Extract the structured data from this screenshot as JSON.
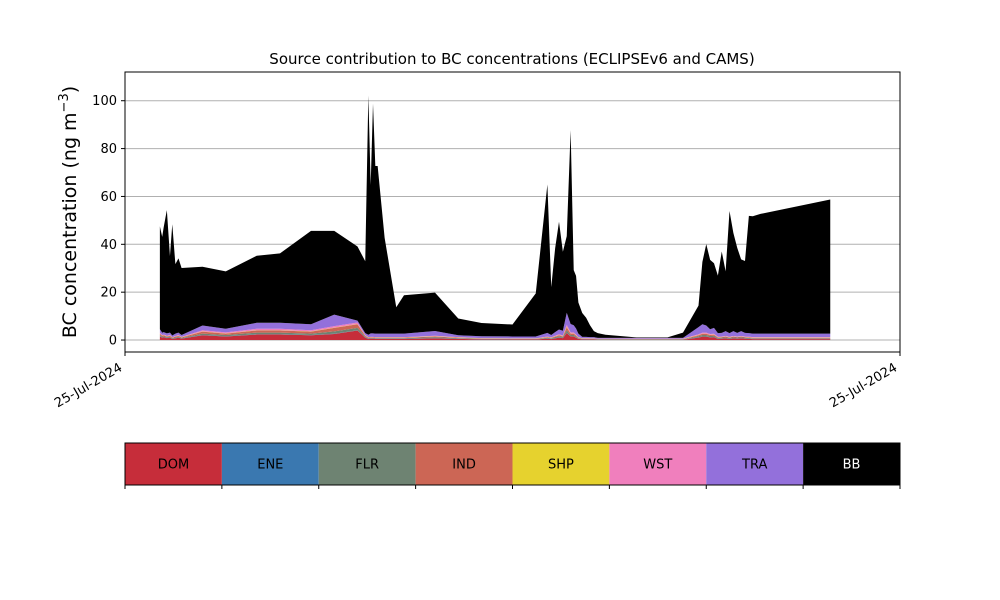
{
  "chart_data": {
    "type": "area",
    "title": "Source contribution to BC concentrations (ECLIPSEv6 and CAMS)",
    "ylabel": "BC concentration (ng m⁻³)",
    "ylabel_main": "BC concentration (ng m",
    "ylabel_sup": "−3",
    "ylabel_close": ")",
    "ylim": [
      -5,
      112
    ],
    "y_ticks": [
      0,
      20,
      40,
      60,
      80,
      100
    ],
    "x_ticks": [
      "25-Jul-2024",
      "25-Jul-2024"
    ],
    "xlim": [
      0,
      100
    ],
    "grid": "horizontal",
    "x": [
      4.5,
      4.8,
      5.0,
      5.4,
      5.8,
      6.1,
      6.5,
      6.9,
      7.3,
      10.0,
      13.0,
      17.0,
      20.0,
      24.0,
      27.0,
      30.0,
      31.0,
      31.4,
      31.7,
      32.0,
      32.3,
      32.6,
      32.9,
      33.2,
      33.5,
      35.0,
      36.0,
      40.0,
      43.0,
      46.0,
      50.0,
      53.0,
      54.5,
      55.0,
      55.5,
      56.0,
      56.5,
      57.0,
      57.5,
      57.9,
      58.2,
      58.5,
      59.0,
      59.5,
      60.0,
      60.5,
      61.0,
      62.0,
      66.0,
      70.0,
      72.0,
      74.0,
      74.5,
      75.0,
      75.5,
      76.0,
      76.5,
      77.0,
      77.5,
      78.0,
      78.5,
      79.0,
      79.5,
      80.0,
      80.5,
      81.0,
      82.0,
      91.0
    ],
    "series": [
      {
        "name": "DOM",
        "color": "#c62d3a",
        "values": [
          1.5,
          1.0,
          1.2,
          0.8,
          1.0,
          0.5,
          0.7,
          1.0,
          0.6,
          2.0,
          1.5,
          2.3,
          2.3,
          2.0,
          2.5,
          4.0,
          1.0,
          0.5,
          0.6,
          0.6,
          0.5,
          0.5,
          0.5,
          0.5,
          0.5,
          0.5,
          0.5,
          0.7,
          0.5,
          0.3,
          0.2,
          0.2,
          0.6,
          0.4,
          0.7,
          1.0,
          0.8,
          3.0,
          1.5,
          1.5,
          1.0,
          0.5,
          0.3,
          0.3,
          0.2,
          0.2,
          0.1,
          0.1,
          0.1,
          0.1,
          0.1,
          1.0,
          1.4,
          1.4,
          1.1,
          1.2,
          0.5,
          0.6,
          0.7,
          0.5,
          0.7,
          0.6,
          0.7,
          0.6,
          0.5,
          0.4,
          0.4,
          0.4
        ]
      },
      {
        "name": "ENE",
        "color": "#3a78b0",
        "values": [
          0.1,
          0.1,
          0.1,
          0.1,
          0.1,
          0.1,
          0.1,
          0.1,
          0.1,
          0.1,
          0.1,
          0.1,
          0.1,
          0.1,
          0.1,
          0.1,
          0.1,
          0.1,
          0.1,
          0.1,
          0.1,
          0.1,
          0.1,
          0.1,
          0.1,
          0.1,
          0.1,
          0.1,
          0.1,
          0.1,
          0.1,
          0.1,
          0.1,
          0.1,
          0.1,
          0.1,
          0.1,
          0.1,
          0.1,
          0.1,
          0.1,
          0.1,
          0.1,
          0.1,
          0.1,
          0.1,
          0.1,
          0.1,
          0.1,
          0.1,
          0.1,
          0.1,
          0.1,
          0.1,
          0.1,
          0.1,
          0.1,
          0.1,
          0.1,
          0.1,
          0.1,
          0.1,
          0.1,
          0.1,
          0.1,
          0.1,
          0.1,
          0.1
        ]
      },
      {
        "name": "FLR",
        "color": "#6e8372",
        "values": [
          0.5,
          0.3,
          0.3,
          0.3,
          0.3,
          0.2,
          0.3,
          0.3,
          0.2,
          0.6,
          0.5,
          0.7,
          0.7,
          0.6,
          1.0,
          1.0,
          0.3,
          0.2,
          0.2,
          0.2,
          0.2,
          0.2,
          0.2,
          0.2,
          0.2,
          0.2,
          0.2,
          0.4,
          0.2,
          0.1,
          0.1,
          0.1,
          0.3,
          0.2,
          0.4,
          0.5,
          0.4,
          1.0,
          0.5,
          0.5,
          0.4,
          0.2,
          0.1,
          0.1,
          0.1,
          0.1,
          0.1,
          0.1,
          0.1,
          0.1,
          0.1,
          0.5,
          0.6,
          0.6,
          0.5,
          0.5,
          0.3,
          0.3,
          0.3,
          0.3,
          0.3,
          0.3,
          0.3,
          0.3,
          0.3,
          0.2,
          0.2,
          0.2
        ]
      },
      {
        "name": "IND",
        "color": "#cc6655",
        "values": [
          0.5,
          0.4,
          0.4,
          0.3,
          0.4,
          0.2,
          0.3,
          0.4,
          0.2,
          0.8,
          0.6,
          0.9,
          0.9,
          0.8,
          1.5,
          1.5,
          0.4,
          0.2,
          0.2,
          0.2,
          0.2,
          0.2,
          0.2,
          0.2,
          0.2,
          0.2,
          0.2,
          0.3,
          0.2,
          0.1,
          0.1,
          0.1,
          0.2,
          0.2,
          0.3,
          0.4,
          0.3,
          1.2,
          0.6,
          0.6,
          0.4,
          0.2,
          0.1,
          0.1,
          0.1,
          0.1,
          0.1,
          0.1,
          0.1,
          0.1,
          0.1,
          0.4,
          0.5,
          0.5,
          0.4,
          0.4,
          0.2,
          0.2,
          0.3,
          0.2,
          0.3,
          0.2,
          0.3,
          0.2,
          0.2,
          0.2,
          0.2,
          0.2
        ]
      },
      {
        "name": "SHP",
        "color": "#e6d22e",
        "values": [
          0.1,
          0.1,
          0.1,
          0.1,
          0.1,
          0.1,
          0.1,
          0.1,
          0.1,
          0.1,
          0.1,
          0.1,
          0.1,
          0.1,
          0.1,
          0.1,
          0.1,
          0.1,
          0.1,
          0.1,
          0.1,
          0.1,
          0.1,
          0.1,
          0.1,
          0.1,
          0.1,
          0.1,
          0.1,
          0.1,
          0.1,
          0.1,
          0.1,
          0.1,
          0.1,
          0.1,
          0.1,
          0.3,
          0.1,
          0.1,
          0.1,
          0.1,
          0.1,
          0.1,
          0.1,
          0.1,
          0.1,
          0.1,
          0.1,
          0.1,
          0.1,
          0.1,
          0.1,
          0.1,
          0.1,
          0.1,
          0.1,
          0.1,
          0.1,
          0.1,
          0.1,
          0.1,
          0.1,
          0.1,
          0.1,
          0.1,
          0.1,
          0.1
        ]
      },
      {
        "name": "WST",
        "color": "#f07fbd",
        "values": [
          0.3,
          0.2,
          0.2,
          0.2,
          0.2,
          0.1,
          0.2,
          0.2,
          0.1,
          0.5,
          0.4,
          0.6,
          0.6,
          0.5,
          0.6,
          0.6,
          0.2,
          0.1,
          0.1,
          0.1,
          0.1,
          0.1,
          0.1,
          0.1,
          0.1,
          0.1,
          0.1,
          0.2,
          0.1,
          0.1,
          0.1,
          0.1,
          0.2,
          0.1,
          0.2,
          0.3,
          0.2,
          0.8,
          0.4,
          0.4,
          0.3,
          0.1,
          0.1,
          0.1,
          0.1,
          0.1,
          0.1,
          0.1,
          0.1,
          0.1,
          0.1,
          0.3,
          0.4,
          0.4,
          0.3,
          0.3,
          0.2,
          0.2,
          0.2,
          0.2,
          0.2,
          0.2,
          0.2,
          0.2,
          0.2,
          0.2,
          0.2,
          0.2
        ]
      },
      {
        "name": "TRA",
        "color": "#9370db",
        "values": [
          1.5,
          1.0,
          1.0,
          1.0,
          1.0,
          0.7,
          1.0,
          1.0,
          0.8,
          2.0,
          1.5,
          2.5,
          2.5,
          2.5,
          4.8,
          0.8,
          0.8,
          1.0,
          1.5,
          1.5,
          1.5,
          1.5,
          1.5,
          1.5,
          1.5,
          1.5,
          1.5,
          2.0,
          0.8,
          0.8,
          0.8,
          0.8,
          1.5,
          1.0,
          1.5,
          2.0,
          2.0,
          5.0,
          3.5,
          3.0,
          2.5,
          1.5,
          0.5,
          0.5,
          0.5,
          0.5,
          0.3,
          0.3,
          0.3,
          0.3,
          0.3,
          3.0,
          3.5,
          3.0,
          2.0,
          2.5,
          1.5,
          1.5,
          2.0,
          1.5,
          2.0,
          1.5,
          2.0,
          1.5,
          1.5,
          1.5,
          1.5,
          1.5
        ]
      },
      {
        "name": "BB",
        "color": "#000000",
        "values": [
          43.0,
          40.0,
          44.0,
          51.5,
          32.0,
          46.5,
          29.0,
          31.0,
          28.0,
          24.5,
          24.0,
          28.0,
          29.0,
          39.0,
          35.0,
          31.0,
          30.0,
          100.0,
          62.0,
          96.0,
          70.0,
          70.0,
          60.0,
          50.0,
          40.0,
          11.0,
          16.0,
          16.0,
          7.0,
          5.5,
          5.0,
          18.0,
          62.0,
          20.0,
          35.0,
          45.0,
          33.0,
          32.0,
          81.0,
          23.0,
          22.0,
          13.0,
          10.0,
          8.0,
          5.0,
          2.5,
          2.0,
          1.3,
          0.2,
          0.2,
          2.2,
          9.0,
          26.0,
          34.0,
          29.0,
          27.0,
          24.0,
          34.0,
          25.0,
          51.0,
          41.0,
          35.5,
          30.0,
          30.0,
          49.0,
          49.0,
          50.0,
          56.0
        ]
      }
    ]
  }
}
